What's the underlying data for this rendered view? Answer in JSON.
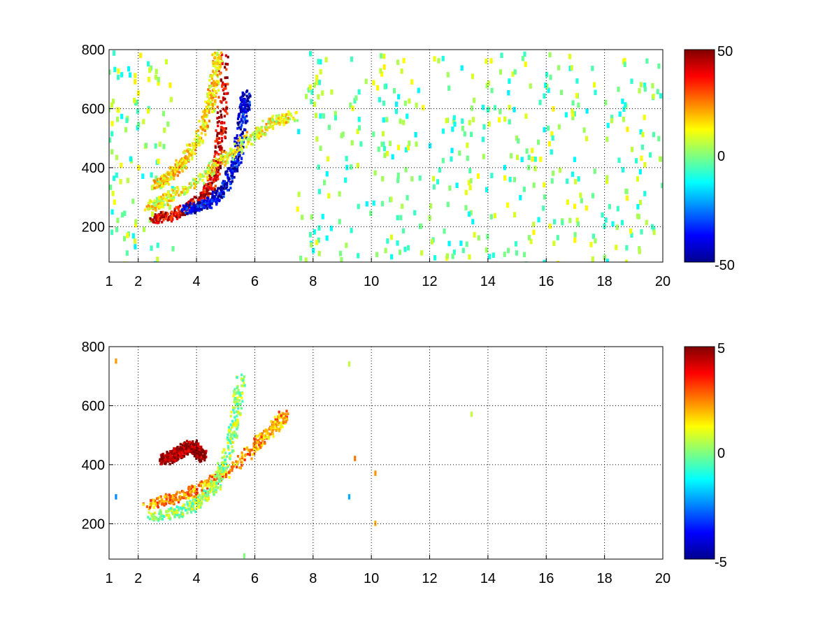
{
  "chart_data": [
    {
      "type": "heatmap",
      "title": "",
      "xlabel": "",
      "ylabel": "",
      "xlim": [
        1,
        20
      ],
      "ylim": [
        80,
        800
      ],
      "xticks": [
        "1",
        "2",
        "4",
        "6",
        "8",
        "10",
        "12",
        "14",
        "16",
        "18",
        "20"
      ],
      "yticks": [
        "200",
        "400",
        "600",
        "800"
      ],
      "grid": true,
      "colormap": "jet",
      "clim": [
        -50,
        50
      ],
      "colorbar_ticks": [
        "50",
        "0",
        "-50"
      ],
      "features": [
        {
          "name": "positive-arc",
          "points": [
            [
              2.5,
              230
            ],
            [
              3.0,
              240
            ],
            [
              3.5,
              258
            ],
            [
              4.0,
              285
            ],
            [
              4.4,
              330
            ],
            [
              4.7,
              420
            ],
            [
              4.85,
              560
            ],
            [
              4.9,
              800
            ]
          ],
          "value": 42
        },
        {
          "name": "negative-arc",
          "points": [
            [
              3.6,
              262
            ],
            [
              4.0,
              272
            ],
            [
              4.5,
              292
            ],
            [
              5.0,
              345
            ],
            [
              5.3,
              420
            ],
            [
              5.5,
              520
            ],
            [
              5.6,
              600
            ],
            [
              5.65,
              650
            ]
          ],
          "value": -40
        },
        {
          "name": "upper-band",
          "points": [
            [
              2.6,
              345
            ],
            [
              3.0,
              370
            ],
            [
              3.5,
              420
            ],
            [
              4.0,
              490
            ],
            [
              4.4,
              600
            ],
            [
              4.6,
              700
            ],
            [
              4.7,
              800
            ]
          ],
          "value": 15
        },
        {
          "name": "outer-band",
          "points": [
            [
              2.3,
              270
            ],
            [
              3.0,
              300
            ],
            [
              4.0,
              360
            ],
            [
              5.0,
              440
            ],
            [
              6.0,
              520
            ],
            [
              6.6,
              560
            ],
            [
              7.3,
              580
            ]
          ],
          "value": 12
        }
      ],
      "noise_columns": [
        1.2,
        1.5,
        2.2,
        2.7,
        7.8,
        8.3,
        9.2,
        10.2,
        10.7,
        11.3,
        12.4,
        13.0,
        13.6,
        14.5,
        15.2,
        15.8,
        16.6,
        17.2,
        18.3,
        18.9,
        19.5
      ]
    },
    {
      "type": "heatmap",
      "title": "",
      "xlabel": "",
      "ylabel": "",
      "xlim": [
        1,
        20
      ],
      "ylim": [
        80,
        800
      ],
      "xticks": [
        "1",
        "2",
        "4",
        "6",
        "8",
        "10",
        "12",
        "14",
        "16",
        "18",
        "20"
      ],
      "yticks": [
        "200",
        "400",
        "600",
        "800"
      ],
      "grid": true,
      "colormap": "jet",
      "clim": [
        -5,
        5
      ],
      "colorbar_ticks": [
        "5",
        "0",
        "-5"
      ],
      "features": [
        {
          "name": "lower-arc",
          "points": [
            [
              2.2,
              265
            ],
            [
              3.0,
              285
            ],
            [
              4.0,
              320
            ],
            [
              5.0,
              375
            ],
            [
              6.0,
              470
            ],
            [
              6.6,
              530
            ],
            [
              7.0,
              575
            ]
          ],
          "value": 2.2
        },
        {
          "name": "green-band",
          "points": [
            [
              2.4,
              230
            ],
            [
              3.2,
              240
            ],
            [
              4.0,
              270
            ],
            [
              4.6,
              330
            ],
            [
              5.0,
              430
            ],
            [
              5.3,
              560
            ],
            [
              5.5,
              700
            ]
          ],
          "value": 0.3
        },
        {
          "name": "dark-red-cluster",
          "points": [
            [
              2.8,
              420
            ],
            [
              3.3,
              440
            ],
            [
              3.8,
              470
            ],
            [
              4.2,
              430
            ]
          ],
          "value": 4.8
        }
      ],
      "scatter_points": [
        [
          9.2,
          750
        ],
        [
          9.4,
          430
        ],
        [
          9.2,
          300
        ],
        [
          10.1,
          210
        ],
        [
          10.1,
          380
        ],
        [
          13.4,
          580
        ],
        [
          1.2,
          760
        ],
        [
          1.2,
          300
        ],
        [
          5.6,
          100
        ]
      ]
    }
  ]
}
